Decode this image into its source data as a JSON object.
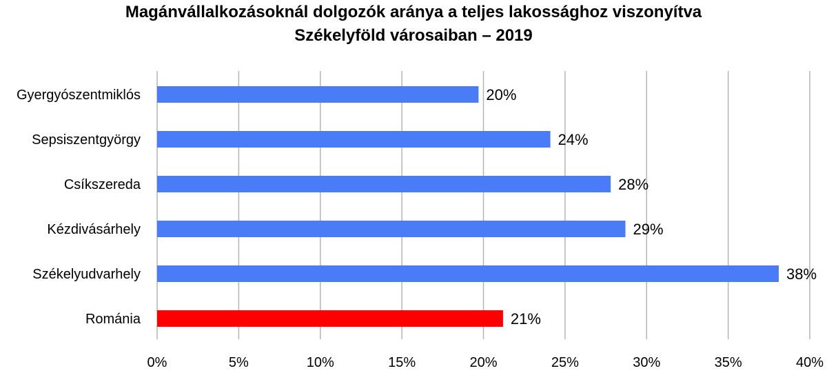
{
  "chart_data": {
    "type": "bar",
    "orientation": "horizontal",
    "title": "Magánvállalkozásoknál dolgozók aránya a teljes lakossághoz viszonyítva",
    "subtitle": "Székelyföld városaiban – 2019",
    "categories": [
      "Gyergyószentmiklós",
      "Sepsiszentgyörgy",
      "Csíkszereda",
      "Kézdivásárhely",
      "Székelyudvarhely",
      "Románia"
    ],
    "values": [
      0.197,
      0.241,
      0.278,
      0.287,
      0.381,
      0.212
    ],
    "data_labels": [
      "20%",
      "24%",
      "28%",
      "29%",
      "38%",
      "21%"
    ],
    "bar_colors": [
      "#4a7cf7",
      "#4a7cf7",
      "#4a7cf7",
      "#4a7cf7",
      "#4a7cf7",
      "#ff0000"
    ],
    "xlim": [
      0,
      0.4
    ],
    "x_ticks": [
      0,
      0.05,
      0.1,
      0.15,
      0.2,
      0.25,
      0.3,
      0.35,
      0.4
    ],
    "x_tick_labels": [
      "0%",
      "5%",
      "10%",
      "15%",
      "20%",
      "25%",
      "30%",
      "35%",
      "40%"
    ],
    "xlabel": "",
    "ylabel": "",
    "grid": "vertical",
    "grid_color": "#b4b4b4",
    "legend": "none"
  }
}
